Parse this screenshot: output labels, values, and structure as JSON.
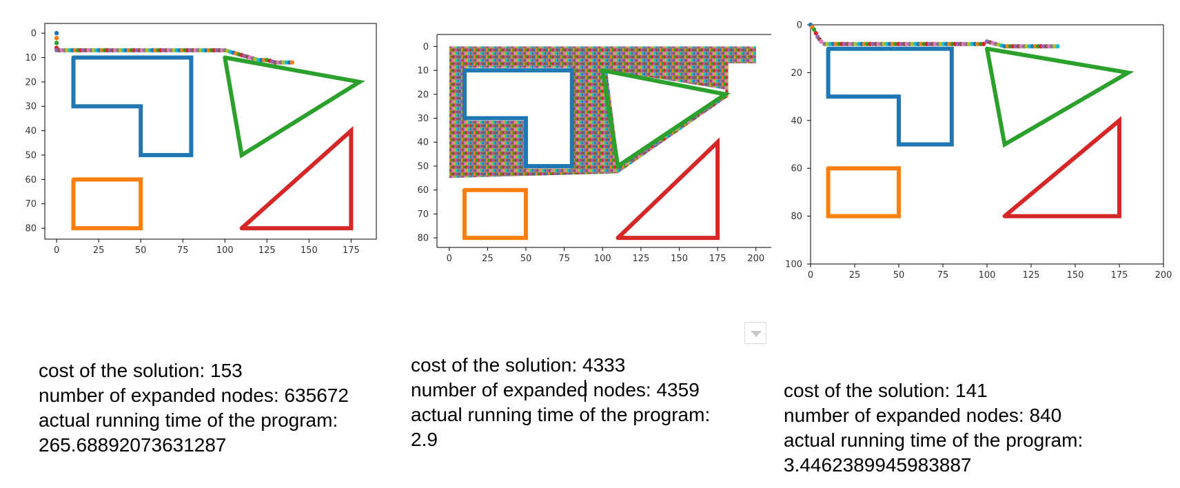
{
  "chart_data": [
    {
      "type": "scatter",
      "title": "",
      "xlabel": "",
      "ylabel": "",
      "xlim": [
        -7,
        190
      ],
      "ylim": [
        84.5,
        -4
      ],
      "y_inverted": true,
      "xticks": [
        0,
        25,
        50,
        75,
        100,
        125,
        150,
        175
      ],
      "yticks": [
        0,
        10,
        20,
        30,
        40,
        50,
        60,
        70,
        80
      ],
      "grid": false,
      "obstacles": [
        {
          "name": "blue",
          "color": "#1f77b4",
          "points": [
            [
              10,
              10
            ],
            [
              80,
              10
            ],
            [
              80,
              50
            ],
            [
              50,
              50
            ],
            [
              50,
              30
            ],
            [
              10,
              30
            ],
            [
              10,
              10
            ]
          ]
        },
        {
          "name": "green",
          "color": "#2ca02c",
          "points": [
            [
              100,
              10
            ],
            [
              180,
              20
            ],
            [
              110,
              50
            ],
            [
              100,
              10
            ]
          ]
        },
        {
          "name": "orange",
          "color": "#ff7f0e",
          "points": [
            [
              10,
              60
            ],
            [
              50,
              60
            ],
            [
              50,
              80
            ],
            [
              10,
              80
            ],
            [
              10,
              60
            ]
          ]
        },
        {
          "name": "red",
          "color": "#d62728",
          "points": [
            [
              110,
              80
            ],
            [
              175,
              40
            ],
            [
              175,
              80
            ],
            [
              110,
              80
            ]
          ]
        }
      ],
      "path": [
        [
          0,
          0
        ],
        [
          0,
          2
        ],
        [
          0,
          4
        ],
        [
          0,
          6
        ],
        [
          0,
          7
        ],
        [
          100,
          7
        ],
        [
          105,
          8
        ],
        [
          110,
          9
        ],
        [
          115,
          10
        ],
        [
          120,
          11
        ],
        [
          125,
          11
        ],
        [
          130,
          12
        ],
        [
          135,
          12
        ],
        [
          140,
          12
        ]
      ]
    },
    {
      "type": "scatter",
      "title": "",
      "xlabel": "",
      "ylabel": "",
      "xlim": [
        -8,
        210
      ],
      "ylim": [
        84,
        -5
      ],
      "y_inverted": true,
      "xticks": [
        0,
        25,
        50,
        75,
        100,
        125,
        150,
        175,
        200
      ],
      "yticks": [
        0,
        10,
        20,
        30,
        40,
        50,
        60,
        70,
        80
      ],
      "grid": false,
      "obstacles": [
        {
          "name": "blue",
          "color": "#1f77b4",
          "points": [
            [
              10,
              10
            ],
            [
              80,
              10
            ],
            [
              80,
              50
            ],
            [
              50,
              50
            ],
            [
              50,
              30
            ],
            [
              10,
              30
            ],
            [
              10,
              10
            ]
          ]
        },
        {
          "name": "green",
          "color": "#2ca02c",
          "points": [
            [
              100,
              10
            ],
            [
              180,
              20
            ],
            [
              110,
              50
            ],
            [
              100,
              10
            ]
          ]
        },
        {
          "name": "orange",
          "color": "#ff7f0e",
          "points": [
            [
              10,
              60
            ],
            [
              50,
              60
            ],
            [
              50,
              80
            ],
            [
              10,
              80
            ],
            [
              10,
              60
            ]
          ]
        },
        {
          "name": "red",
          "color": "#d62728",
          "points": [
            [
              110,
              80
            ],
            [
              175,
              40
            ],
            [
              175,
              80
            ],
            [
              110,
              80
            ]
          ]
        }
      ],
      "explored_region": [
        [
          0,
          0
        ],
        [
          200,
          0
        ],
        [
          200,
          7
        ],
        [
          182,
          7
        ],
        [
          182,
          21
        ],
        [
          110,
          53
        ],
        [
          0,
          55
        ],
        [
          0,
          0
        ]
      ],
      "explored_holes": [
        [
          [
            11,
            9
          ],
          [
            79,
            9
          ],
          [
            79,
            51
          ],
          [
            51,
            51
          ],
          [
            51,
            31
          ],
          [
            11,
            31
          ],
          [
            11,
            9
          ]
        ],
        [
          [
            103,
            10
          ],
          [
            180,
            18
          ],
          [
            180,
            21
          ],
          [
            111,
            50
          ],
          [
            103,
            10
          ]
        ]
      ]
    },
    {
      "type": "scatter",
      "title": "",
      "xlabel": "",
      "ylabel": "",
      "xlim": [
        0,
        200
      ],
      "ylim": [
        100,
        0
      ],
      "y_inverted": true,
      "xticks": [
        0,
        25,
        50,
        75,
        100,
        125,
        150,
        175,
        200
      ],
      "yticks": [
        0,
        20,
        40,
        60,
        80,
        100
      ],
      "grid": false,
      "obstacles": [
        {
          "name": "blue",
          "color": "#1f77b4",
          "points": [
            [
              10,
              10
            ],
            [
              80,
              10
            ],
            [
              80,
              50
            ],
            [
              50,
              50
            ],
            [
              50,
              30
            ],
            [
              10,
              30
            ],
            [
              10,
              10
            ]
          ]
        },
        {
          "name": "green",
          "color": "#2ca02c",
          "points": [
            [
              100,
              10
            ],
            [
              180,
              20
            ],
            [
              110,
              50
            ],
            [
              100,
              10
            ]
          ]
        },
        {
          "name": "orange",
          "color": "#ff7f0e",
          "points": [
            [
              10,
              60
            ],
            [
              50,
              60
            ],
            [
              50,
              80
            ],
            [
              10,
              80
            ],
            [
              10,
              60
            ]
          ]
        },
        {
          "name": "red",
          "color": "#d62728",
          "points": [
            [
              110,
              80
            ],
            [
              175,
              40
            ],
            [
              175,
              80
            ],
            [
              110,
              80
            ]
          ]
        }
      ],
      "path": [
        [
          0,
          0
        ],
        [
          2,
          2
        ],
        [
          4,
          5
        ],
        [
          6,
          7
        ],
        [
          8,
          8
        ],
        [
          98,
          8
        ],
        [
          100,
          7
        ],
        [
          105,
          8
        ],
        [
          110,
          9
        ],
        [
          140,
          9
        ]
      ]
    }
  ],
  "stats": [
    {
      "cost": "cost of the solution: 153",
      "nodes": "number of expanded nodes: 635672",
      "time_label": "actual running time of the program:",
      "time_value": "265.68892073631287"
    },
    {
      "cost": "cost of the solution: 4333",
      "nodes": "number of expanded nodes: 4359",
      "time_label": "actual running time of the program:",
      "time_value": "2.9"
    },
    {
      "cost": "cost of the solution: 141",
      "nodes": "number of expanded nodes: 840",
      "time_label": "actual running time of the program:",
      "time_value": "3.4462389945983887"
    }
  ]
}
